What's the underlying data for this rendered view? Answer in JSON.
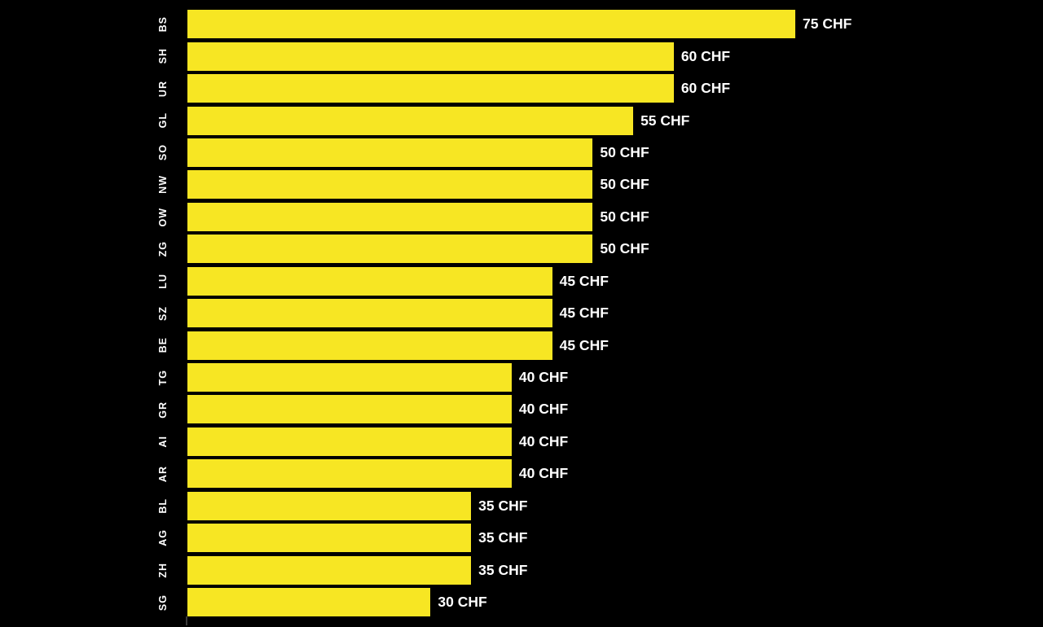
{
  "chart_data": {
    "type": "bar",
    "orientation": "horizontal",
    "title": "",
    "xlabel": "",
    "ylabel": "",
    "unit": "CHF",
    "categories": [
      "BS",
      "SH",
      "UR",
      "GL",
      "SO",
      "NW",
      "OW",
      "ZG",
      "LU",
      "SZ",
      "BE",
      "TG",
      "GR",
      "AI",
      "AR",
      "BL",
      "AG",
      "ZH",
      "SG"
    ],
    "values": [
      75,
      60,
      60,
      55,
      50,
      50,
      50,
      50,
      45,
      45,
      45,
      40,
      40,
      40,
      40,
      35,
      35,
      35,
      30
    ],
    "value_labels": [
      "75 CHF",
      "60 CHF",
      "60 CHF",
      "55 CHF",
      "50 CHF",
      "50 CHF",
      "50 CHF",
      "50 CHF",
      "45 CHF",
      "45 CHF",
      "45 CHF",
      "40 CHF",
      "40 CHF",
      "40 CHF",
      "40 CHF",
      "35 CHF",
      "35 CHF",
      "35 CHF",
      "30 CHF"
    ],
    "xlim": [
      0,
      105
    ],
    "grid": false,
    "legend": false,
    "colors": {
      "bar": "#f7e623",
      "label": "#ffffff",
      "background": "#000000"
    }
  }
}
